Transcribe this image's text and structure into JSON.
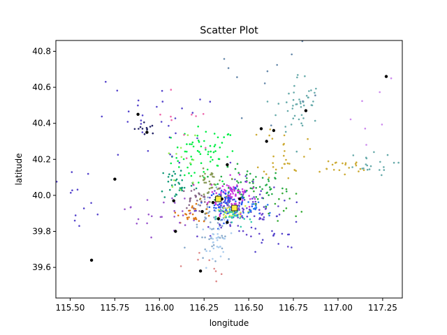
{
  "chart_data": {
    "type": "scatter",
    "title": "Scatter Plot",
    "xlabel": "longitude",
    "ylabel": "latitude",
    "xlim": [
      115.42,
      117.36
    ],
    "ylim": [
      39.43,
      40.86
    ],
    "x_ticks": [
      "115.50",
      "115.75",
      "116.00",
      "116.25",
      "116.50",
      "116.75",
      "117.00",
      "117.25"
    ],
    "x_tick_values": [
      115.5,
      115.75,
      116.0,
      116.25,
      116.5,
      116.75,
      117.0,
      117.25
    ],
    "y_ticks": [
      "39.6",
      "39.8",
      "40.0",
      "40.2",
      "40.4",
      "40.6",
      "40.8"
    ],
    "y_tick_values": [
      39.6,
      39.8,
      40.0,
      40.2,
      40.4,
      40.6,
      40.8
    ],
    "grid": false,
    "legend": "none",
    "series": [
      {
        "color": "#00ee44",
        "center": [
          116.25,
          40.22
        ],
        "spread": [
          0.09,
          0.08
        ],
        "count": 70
      },
      {
        "color": "#22aa44",
        "center": [
          116.5,
          40.05
        ],
        "spread": [
          0.1,
          0.05
        ],
        "count": 60
      },
      {
        "color": "#cc33dd",
        "center": [
          116.4,
          40.0
        ],
        "spread": [
          0.06,
          0.05
        ],
        "count": 90
      },
      {
        "color": "#2255ee",
        "center": [
          116.38,
          39.95
        ],
        "spread": [
          0.05,
          0.04
        ],
        "count": 80
      },
      {
        "color": "#6644cc",
        "center": [
          116.45,
          39.92
        ],
        "spread": [
          0.12,
          0.08
        ],
        "count": 90
      },
      {
        "color": "#88aacc",
        "center": [
          116.3,
          39.8
        ],
        "spread": [
          0.06,
          0.1
        ],
        "count": 50
      },
      {
        "color": "#aaccee",
        "center": [
          116.33,
          39.75
        ],
        "spread": [
          0.03,
          0.06
        ],
        "count": 30
      },
      {
        "color": "#dd7711",
        "center": [
          116.2,
          39.91
        ],
        "spread": [
          0.05,
          0.03
        ],
        "count": 30
      },
      {
        "color": "#889955",
        "center": [
          116.28,
          40.06
        ],
        "spread": [
          0.04,
          0.04
        ],
        "count": 40
      },
      {
        "color": "#886688",
        "center": [
          116.2,
          39.98
        ],
        "spread": [
          0.04,
          0.03
        ],
        "count": 25
      },
      {
        "color": "#ddee44",
        "center": [
          116.38,
          39.9
        ],
        "spread": [
          0.05,
          0.02
        ],
        "count": 25
      },
      {
        "color": "#33ccaa",
        "center": [
          116.42,
          39.88
        ],
        "spread": [
          0.05,
          0.03
        ],
        "count": 30
      },
      {
        "color": "#119977",
        "center": [
          116.1,
          40.07
        ],
        "spread": [
          0.05,
          0.05
        ],
        "count": 35
      },
      {
        "color": "#66aaaa",
        "center": [
          116.78,
          40.5
        ],
        "spread": [
          0.06,
          0.09
        ],
        "count": 45
      },
      {
        "color": "#ccaa33",
        "center": [
          116.7,
          40.25
        ],
        "spread": [
          0.06,
          0.08
        ],
        "count": 30
      },
      {
        "color": "#ccaa33",
        "center": [
          117.0,
          40.15
        ],
        "spread": [
          0.1,
          0.03
        ],
        "count": 20
      },
      {
        "color": "#66aaaa",
        "center": [
          117.15,
          40.17
        ],
        "spread": [
          0.08,
          0.03
        ],
        "count": 20
      },
      {
        "color": "#5544cc",
        "center": [
          115.95,
          40.4
        ],
        "spread": [
          0.15,
          0.12
        ],
        "count": 30
      },
      {
        "color": "#222266",
        "center": [
          115.92,
          40.37
        ],
        "spread": [
          0.03,
          0.02
        ],
        "count": 12
      },
      {
        "color": "#9955cc",
        "center": [
          116.0,
          39.9
        ],
        "spread": [
          0.1,
          0.06
        ],
        "count": 25
      },
      {
        "color": "#5544cc",
        "center": [
          116.6,
          39.8
        ],
        "spread": [
          0.12,
          0.08
        ],
        "count": 25
      },
      {
        "color": "#dd8888",
        "center": [
          116.3,
          39.6
        ],
        "spread": [
          0.08,
          0.05
        ],
        "count": 8
      },
      {
        "color": "#5544cc",
        "center": [
          115.55,
          39.9
        ],
        "spread": [
          0.06,
          0.12
        ],
        "count": 12
      },
      {
        "color": "#cc88ee",
        "center": [
          117.2,
          40.4
        ],
        "spread": [
          0.1,
          0.15
        ],
        "count": 8
      },
      {
        "color": "#ee66aa",
        "center": [
          116.15,
          40.4
        ],
        "spread": [
          0.1,
          0.12
        ],
        "count": 10
      },
      {
        "color": "#2277ee",
        "center": [
          116.55,
          39.93
        ],
        "spread": [
          0.05,
          0.03
        ],
        "count": 20
      },
      {
        "color": "#6688aa",
        "center": [
          116.55,
          40.65
        ],
        "spread": [
          0.15,
          0.1
        ],
        "count": 12
      },
      {
        "color": "#33aa33",
        "center": [
          116.68,
          39.95
        ],
        "spread": [
          0.08,
          0.06
        ],
        "count": 15
      },
      {
        "color": "#99ee55",
        "center": [
          116.15,
          40.2
        ],
        "spread": [
          0.05,
          0.08
        ],
        "count": 12
      }
    ],
    "highlight_points": {
      "color": "#000000",
      "x": [
        117.27,
        116.82,
        116.57,
        116.6,
        116.64,
        115.88,
        115.93,
        115.75,
        115.62,
        116.38,
        116.23,
        116.09,
        116.08,
        116.24,
        116.35,
        116.42,
        116.45,
        116.3,
        116.38,
        116.33
      ],
      "y": [
        40.66,
        40.47,
        40.37,
        40.3,
        40.36,
        40.45,
        40.35,
        40.09,
        39.64,
        40.17,
        39.58,
        39.8,
        39.97,
        39.91,
        39.98,
        39.92,
        39.98,
        39.96,
        39.85,
        39.87
      ]
    },
    "cluster_markers": {
      "color": "#ffee44",
      "x": [
        116.33,
        116.42
      ],
      "y": [
        39.98,
        39.93
      ]
    }
  }
}
